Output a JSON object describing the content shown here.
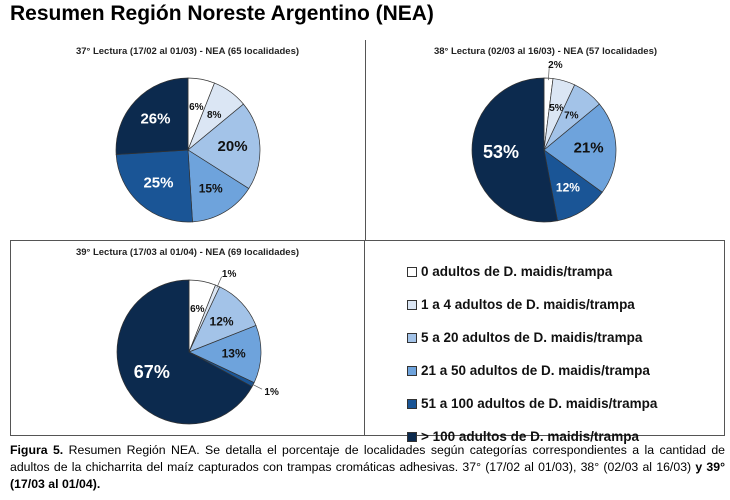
{
  "title": "Resumen Región Noreste Argentino (NEA)",
  "chart_data": [
    {
      "type": "pie",
      "title": "37° Lectura (17/02 al 01/03) - NEA (65 localidades)",
      "values": [
        6,
        8,
        20,
        15,
        25,
        26
      ],
      "labels": [
        "6%",
        "8%",
        "20%",
        "15%",
        "25%",
        "26%"
      ]
    },
    {
      "type": "pie",
      "title": "38° Lectura (02/03 al 16/03) - NEA (57 localidades)",
      "values": [
        2,
        5,
        7,
        21,
        12,
        53
      ],
      "labels": [
        "2%",
        "5%",
        "7%",
        "21%",
        "12%",
        "53%"
      ]
    },
    {
      "type": "pie",
      "title": "39° Lectura (17/03 al 01/04) - NEA (69 localidades)",
      "values": [
        6,
        1,
        12,
        13,
        1,
        67
      ],
      "labels": [
        "6%",
        "1%",
        "12%",
        "13%",
        "1%",
        "67%"
      ]
    }
  ],
  "legend": [
    {
      "label": "0 adultos de D. maidis/trampa",
      "color": "#ffffff"
    },
    {
      "label": "1 a 4 adultos de D. maidis/trampa",
      "color": "#dbe6f4"
    },
    {
      "label": "5 a 20 adultos de D. maidis/trampa",
      "color": "#a3c3e8"
    },
    {
      "label": "21 a 50 adultos de D. maidis/trampa",
      "color": "#6ea3dc"
    },
    {
      "label": "51 a 100 adultos de D. maidis/trampa",
      "color": "#1a5596"
    },
    {
      "label": "> 100 adultos de D. maidis/trampa",
      "color": "#0c2a4e"
    }
  ],
  "caption": {
    "label": "Figura 5.",
    "text": " Resumen Región NEA. Se detalla el porcentaje de localidades según categorías correspondientes a la cantidad de adultos de la chicharrita del maíz capturados con trampas cromáticas adhesivas. 37° (17/02 al 01/03), 38° (02/03 al 16/03) ",
    "bold_end": "y 39° (17/03 al 01/04)."
  }
}
